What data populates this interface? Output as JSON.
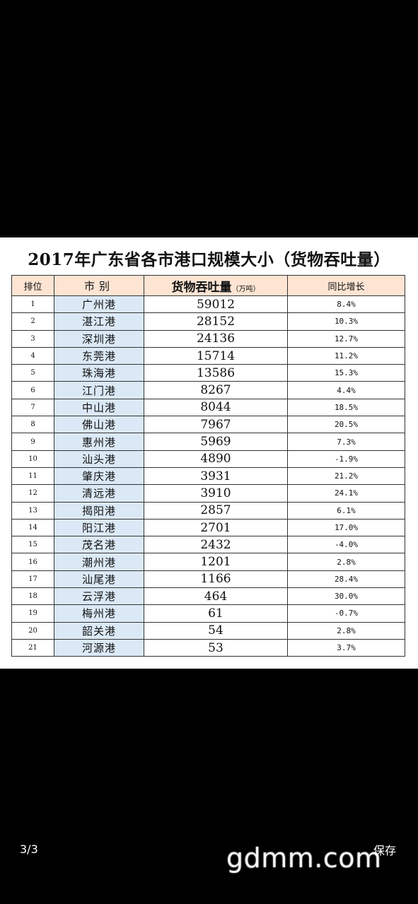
{
  "table": {
    "title": "2017年广东省各市港口规模大小（货物吞吐量）",
    "headers": {
      "rank": "排位",
      "city": "市别",
      "volume": "货物吞吐量",
      "volume_unit": "（万吨）",
      "growth": "同比增长"
    },
    "rows": [
      {
        "rank": "1",
        "city": "广州港",
        "volume": "59012",
        "growth": "8.4%"
      },
      {
        "rank": "2",
        "city": "湛江港",
        "volume": "28152",
        "growth": "10.3%"
      },
      {
        "rank": "3",
        "city": "深圳港",
        "volume": "24136",
        "growth": "12.7%"
      },
      {
        "rank": "4",
        "city": "东莞港",
        "volume": "15714",
        "growth": "11.2%"
      },
      {
        "rank": "5",
        "city": "珠海港",
        "volume": "13586",
        "growth": "15.3%"
      },
      {
        "rank": "6",
        "city": "江门港",
        "volume": "8267",
        "growth": "4.4%"
      },
      {
        "rank": "7",
        "city": "中山港",
        "volume": "8044",
        "growth": "18.5%"
      },
      {
        "rank": "8",
        "city": "佛山港",
        "volume": "7967",
        "growth": "20.5%"
      },
      {
        "rank": "9",
        "city": "惠州港",
        "volume": "5969",
        "growth": "7.3%"
      },
      {
        "rank": "10",
        "city": "汕头港",
        "volume": "4890",
        "growth": "-1.9%"
      },
      {
        "rank": "11",
        "city": "肇庆港",
        "volume": "3931",
        "growth": "21.2%"
      },
      {
        "rank": "12",
        "city": "清远港",
        "volume": "3910",
        "growth": "24.1%"
      },
      {
        "rank": "13",
        "city": "揭阳港",
        "volume": "2857",
        "growth": "6.1%"
      },
      {
        "rank": "14",
        "city": "阳江港",
        "volume": "2701",
        "growth": "17.0%"
      },
      {
        "rank": "15",
        "city": "茂名港",
        "volume": "2432",
        "growth": "-4.0%"
      },
      {
        "rank": "16",
        "city": "潮州港",
        "volume": "1201",
        "growth": "2.8%"
      },
      {
        "rank": "17",
        "city": "汕尾港",
        "volume": "1166",
        "growth": "28.4%"
      },
      {
        "rank": "18",
        "city": "云浮港",
        "volume": "464",
        "growth": "30.0%"
      },
      {
        "rank": "19",
        "city": "梅州港",
        "volume": "61",
        "growth": "-0.7%"
      },
      {
        "rank": "20",
        "city": "韶关港",
        "volume": "54",
        "growth": "2.8%"
      },
      {
        "rank": "21",
        "city": "河源港",
        "volume": "53",
        "growth": "3.7%"
      }
    ]
  },
  "viewer": {
    "page_counter": "3/3",
    "save_label": "保存",
    "watermark": "gdmm.com"
  }
}
